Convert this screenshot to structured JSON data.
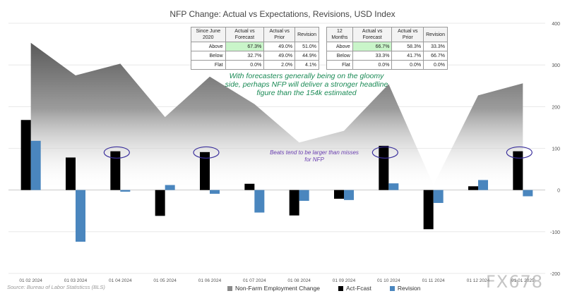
{
  "chart_data": {
    "type": "bar",
    "title": "NFP Change: Actual vs Expectations, Revisions, USD Index",
    "categories": [
      "01 02 2024",
      "01 03 2024",
      "01 04 2024",
      "01 05 2024",
      "01 06 2024",
      "01 07 2024",
      "01 08 2024",
      "01 09 2024",
      "01 10 2024",
      "01 11 2024",
      "01 12 2024",
      "01 01 2025"
    ],
    "series": [
      {
        "name": "Non-Farm Employment Change",
        "kind": "area",
        "color": "#7f7f7f",
        "values": [
          353,
          275,
          303,
          175,
          272,
          206,
          114,
          142,
          254,
          12,
          227,
          256
        ]
      },
      {
        "name": "Act-Fcast",
        "kind": "bar",
        "color": "#000000",
        "values": [
          168,
          78,
          93,
          -62,
          91,
          15,
          -61,
          -21,
          106,
          -94,
          9,
          93
        ]
      },
      {
        "name": "Revision",
        "kind": "bar",
        "color": "#4a86be",
        "values": [
          118,
          -124,
          -4,
          12,
          -9,
          -54,
          -26,
          -24,
          16,
          -31,
          24,
          -15
        ]
      }
    ],
    "ylim": [
      -200,
      400
    ],
    "yticks": [
      400,
      300,
      200,
      100,
      0,
      -100,
      -200
    ],
    "highlighted_categories": [
      2,
      4,
      8,
      11
    ],
    "legend_position": "bottom",
    "source": "Source: Bureau of Labor Statisticss (BLS)",
    "annotations": [
      "With forecasters generally being on the gloomy side, perhaps NFP will deliver a stronger headline figure than the 154k estimated",
      "Beats tend to be larger than misses for NFP"
    ]
  },
  "table1": {
    "headers": [
      "Since June 2020",
      "Actual vs Forecast",
      "Actual vs Prior",
      "Revision"
    ],
    "rows": [
      {
        "label": "Above",
        "c1": "67.3%",
        "c2": "49.0%",
        "c3": "51.0%"
      },
      {
        "label": "Below",
        "c1": "32.7%",
        "c2": "49.0%",
        "c3": "44.9%"
      },
      {
        "label": "Flat",
        "c1": "0.0%",
        "c2": "2.0%",
        "c3": "4.1%"
      }
    ]
  },
  "table2": {
    "headers": [
      "12 Months",
      "Actual vs Forecast",
      "Actual vs Prior",
      "Revision"
    ],
    "rows": [
      {
        "label": "Above",
        "c1": "66.7%",
        "c2": "58.3%",
        "c3": "33.3%"
      },
      {
        "label": "Below",
        "c1": "33.3%",
        "c2": "41.7%",
        "c3": "66.7%"
      },
      {
        "label": "Flat",
        "c1": "0.0%",
        "c2": "0.0%",
        "c3": "0.0%"
      }
    ]
  },
  "watermark": "FX678",
  "colors": {
    "highlight": "#c9f5c9",
    "ellipse": "#3a2f9c"
  }
}
